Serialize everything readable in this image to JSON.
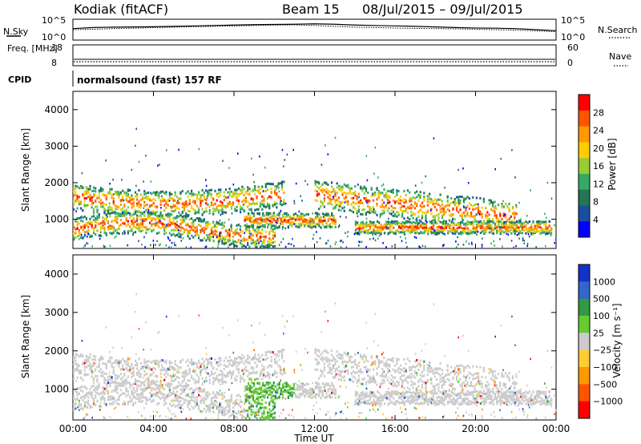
{
  "header": {
    "station": "Kodiak (fitACF)",
    "beam": "Beam 15",
    "date_range": "08/Jul/2015 – 09/Jul/2015",
    "cpid_text": "normalsound (fast) 157 RF"
  },
  "chart_data": [
    {
      "type": "line",
      "name": "nsky-nsearch-panel",
      "left_label": "N.Sky",
      "right_label": "N.Search",
      "left_ticks": [
        "10^5",
        "10^0"
      ],
      "right_ticks": [
        "10^5",
        "10^0"
      ],
      "scale": "log",
      "series": [
        {
          "name": "N.Sky",
          "x": [
            0,
            1,
            2,
            3,
            4,
            5,
            6,
            7,
            8,
            9,
            10,
            11,
            12,
            13,
            14,
            15,
            16,
            17,
            18,
            19,
            20,
            21,
            22,
            23,
            24
          ],
          "y_frac": [
            0.55,
            0.6,
            0.62,
            0.63,
            0.64,
            0.66,
            0.68,
            0.7,
            0.72,
            0.74,
            0.75,
            0.76,
            0.78,
            0.76,
            0.72,
            0.7,
            0.68,
            0.66,
            0.63,
            0.6,
            0.58,
            0.57,
            0.55,
            0.5,
            0.45
          ]
        },
        {
          "name": "N.Search",
          "x": [
            0,
            1,
            2,
            3,
            4,
            5,
            6,
            7,
            8,
            9,
            10,
            11,
            12,
            13,
            14,
            15,
            16,
            17,
            18,
            19,
            20,
            21,
            22,
            23,
            24
          ],
          "y_frac": [
            0.5,
            0.52,
            0.55,
            0.57,
            0.6,
            0.62,
            0.64,
            0.66,
            0.68,
            0.7,
            0.72,
            0.73,
            0.7,
            0.66,
            0.62,
            0.6,
            0.58,
            0.56,
            0.55,
            0.54,
            0.52,
            0.5,
            0.48,
            0.44,
            0.4
          ]
        }
      ]
    },
    {
      "type": "line",
      "name": "freq-nave-panel",
      "left_label": "Freq. [MHz]",
      "right_label": "Nave",
      "left_ticks": [
        "18",
        "8"
      ],
      "right_ticks": [
        "60",
        "0"
      ],
      "values_note": "Freq ~ 9 MHz constant, Nave ~ 30 constant"
    },
    {
      "type": "heatmap",
      "name": "power-panel",
      "ylabel": "Slant Range [km]",
      "yticks": [
        "4000",
        "3000",
        "2000",
        "1000"
      ],
      "ylim": [
        200,
        4500
      ],
      "xlim": [
        0,
        24
      ],
      "colorbar": {
        "label": "Power [dB]",
        "ticks": [
          "28",
          "24",
          "20",
          "16",
          "12",
          "8",
          "4"
        ],
        "colors": [
          "#ff0000",
          "#ff5500",
          "#ff9900",
          "#ffcc00",
          "#99cc33",
          "#33aa66",
          "#227755",
          "#1a4fa0",
          "#0000ff"
        ]
      },
      "scatter_bands": [
        {
          "name": "upper-band",
          "x_start": 0,
          "x_end": 10.5,
          "range_km": [
            1300,
            2000
          ],
          "peak_db": 20
        },
        {
          "name": "lower-band",
          "x_start": 0,
          "x_end": 10,
          "range_km": [
            400,
            1000
          ],
          "peak_db": 26
        },
        {
          "name": "midday-band",
          "x_start": 12,
          "x_end": 22,
          "range_km": [
            1200,
            2100
          ],
          "peak_db": 22
        }
      ]
    },
    {
      "type": "heatmap",
      "name": "velocity-panel",
      "ylabel": "Slant Range [km]",
      "yticks": [
        "4000",
        "3000",
        "2000",
        "1000"
      ],
      "ylim": [
        200,
        4500
      ],
      "xlim": [
        0,
        24
      ],
      "xticks": [
        "00:00",
        "04:00",
        "08:00",
        "12:00",
        "16:00",
        "20:00",
        "00:00"
      ],
      "xlabel": "Time UT",
      "colorbar": {
        "label": "Velocity [m s⁻¹]",
        "ticks": [
          "1000",
          "500",
          "100",
          "25",
          "−25",
          "−100",
          "−500",
          "−1000"
        ],
        "colors": [
          "#1133cc",
          "#3366cc",
          "#339944",
          "#66cc33",
          "#cccccc",
          "#ffcc33",
          "#ff9900",
          "#ff5500",
          "#ff0000"
        ]
      }
    }
  ]
}
